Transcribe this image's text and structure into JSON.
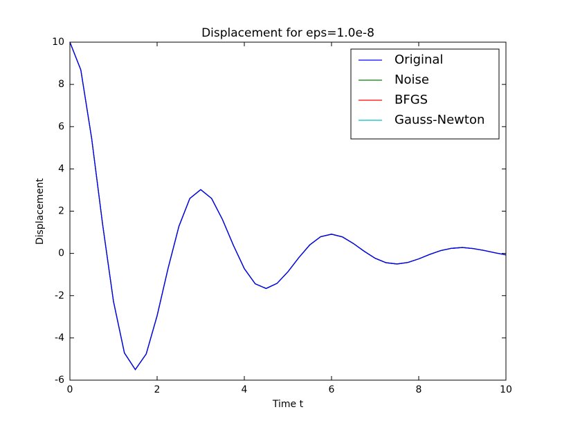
{
  "chart_data": {
    "type": "line",
    "title": "Displacement for eps=1.0e-8",
    "xlabel": "Time t",
    "ylabel": "Displacement",
    "x": [
      0,
      0.25,
      0.5,
      0.75,
      1,
      1.25,
      1.5,
      1.75,
      2,
      2.25,
      2.5,
      2.75,
      3,
      3.25,
      3.5,
      3.75,
      4,
      4.25,
      4.5,
      4.75,
      5,
      5.25,
      5.5,
      5.75,
      6,
      6.25,
      6.5,
      6.75,
      7,
      7.25,
      7.5,
      7.75,
      8,
      8.25,
      8.5,
      8.75,
      9,
      9.25,
      9.5,
      9.75,
      10
    ],
    "series": [
      {
        "name": "Original",
        "color": "#0000ff",
        "values": [
          10,
          8.69,
          5.43,
          1.38,
          -2.28,
          -4.71,
          -5.5,
          -4.76,
          -2.95,
          -0.72,
          1.28,
          2.6,
          3.02,
          2.6,
          1.6,
          0.38,
          -0.72,
          -1.44,
          -1.66,
          -1.42,
          -0.87,
          -0.2,
          0.4,
          0.79,
          0.91,
          0.78,
          0.47,
          0.1,
          -0.23,
          -0.44,
          -0.5,
          -0.43,
          -0.26,
          -0.05,
          0.13,
          0.24,
          0.28,
          0.23,
          0.14,
          0.03,
          -0.07
        ]
      },
      {
        "name": "Noise",
        "color": "#008000",
        "values": [
          10,
          8.69,
          5.43,
          1.38,
          -2.28,
          -4.71,
          -5.5,
          -4.76,
          -2.95,
          -0.72,
          1.28,
          2.6,
          3.02,
          2.6,
          1.6,
          0.38,
          -0.72,
          -1.44,
          -1.66,
          -1.42,
          -0.87,
          -0.2,
          0.4,
          0.79,
          0.91,
          0.78,
          0.47,
          0.1,
          -0.23,
          -0.44,
          -0.5,
          -0.43,
          -0.26,
          -0.05,
          0.13,
          0.24,
          0.28,
          0.23,
          0.14,
          0.03,
          -0.07
        ]
      },
      {
        "name": "BFGS",
        "color": "#ff0000",
        "values": [
          10,
          8.69,
          5.43,
          1.38,
          -2.28,
          -4.71,
          -5.5,
          -4.76,
          -2.95,
          -0.72,
          1.28,
          2.6,
          3.02,
          2.6,
          1.6,
          0.38,
          -0.72,
          -1.44,
          -1.66,
          -1.42,
          -0.87,
          -0.2,
          0.4,
          0.79,
          0.91,
          0.78,
          0.47,
          0.1,
          -0.23,
          -0.44,
          -0.5,
          -0.43,
          -0.26,
          -0.05,
          0.13,
          0.24,
          0.28,
          0.23,
          0.14,
          0.03,
          -0.07
        ]
      },
      {
        "name": "Gauss-Newton",
        "color": "#00bfbf",
        "values": [
          10,
          8.69,
          5.43,
          1.38,
          -2.28,
          -4.71,
          -5.5,
          -4.76,
          -2.95,
          -0.72,
          1.28,
          2.6,
          3.02,
          2.6,
          1.6,
          0.38,
          -0.72,
          -1.44,
          -1.66,
          -1.42,
          -0.87,
          -0.2,
          0.4,
          0.79,
          0.91,
          0.78,
          0.47,
          0.1,
          -0.23,
          -0.44,
          -0.5,
          -0.43,
          -0.26,
          -0.05,
          0.13,
          0.24,
          0.28,
          0.23,
          0.14,
          0.03,
          -0.07
        ]
      }
    ],
    "xlim": [
      0,
      10
    ],
    "xticks": [
      0,
      2,
      4,
      6,
      8,
      10
    ],
    "ylim": [
      -6,
      10
    ],
    "yticks": [
      -6,
      -4,
      -2,
      0,
      2,
      4,
      6,
      8,
      10
    ],
    "grid": false,
    "legend": "upper right"
  }
}
